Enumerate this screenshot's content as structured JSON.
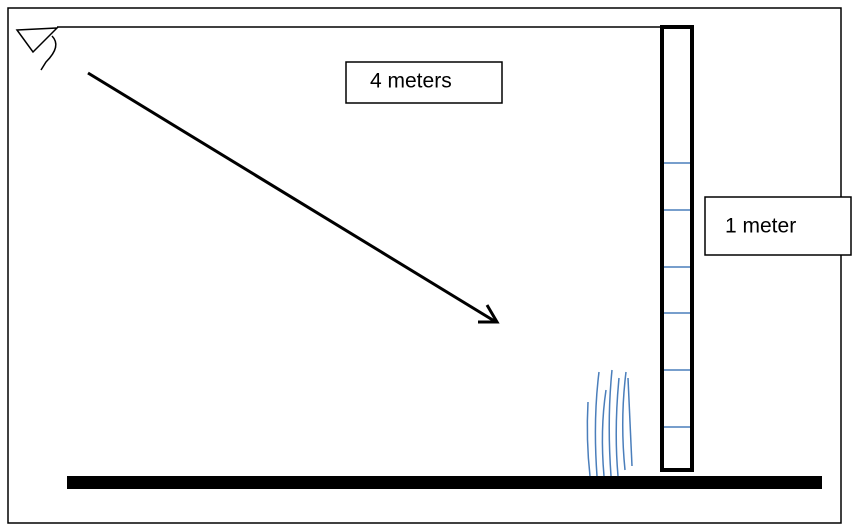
{
  "labels": {
    "distance": "4 meters",
    "height": "1 meter"
  }
}
